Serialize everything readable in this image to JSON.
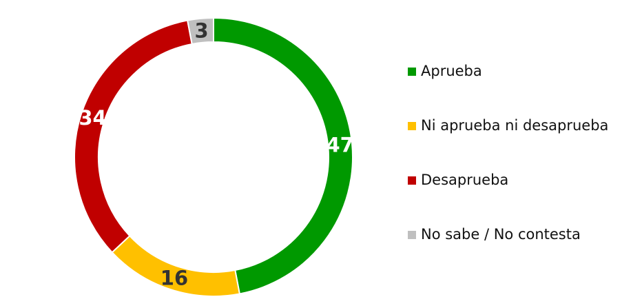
{
  "chart_data": {
    "type": "pie",
    "donut": true,
    "categories": [
      "Aprueba",
      "Ni aprueba ni desaprueba",
      "Desaprueba",
      "No sabe / No contesta"
    ],
    "values": [
      47,
      16,
      34,
      3
    ],
    "colors": [
      "#009900",
      "#FFC000",
      "#C00000",
      "#BFBFBF"
    ],
    "legend": "right"
  }
}
